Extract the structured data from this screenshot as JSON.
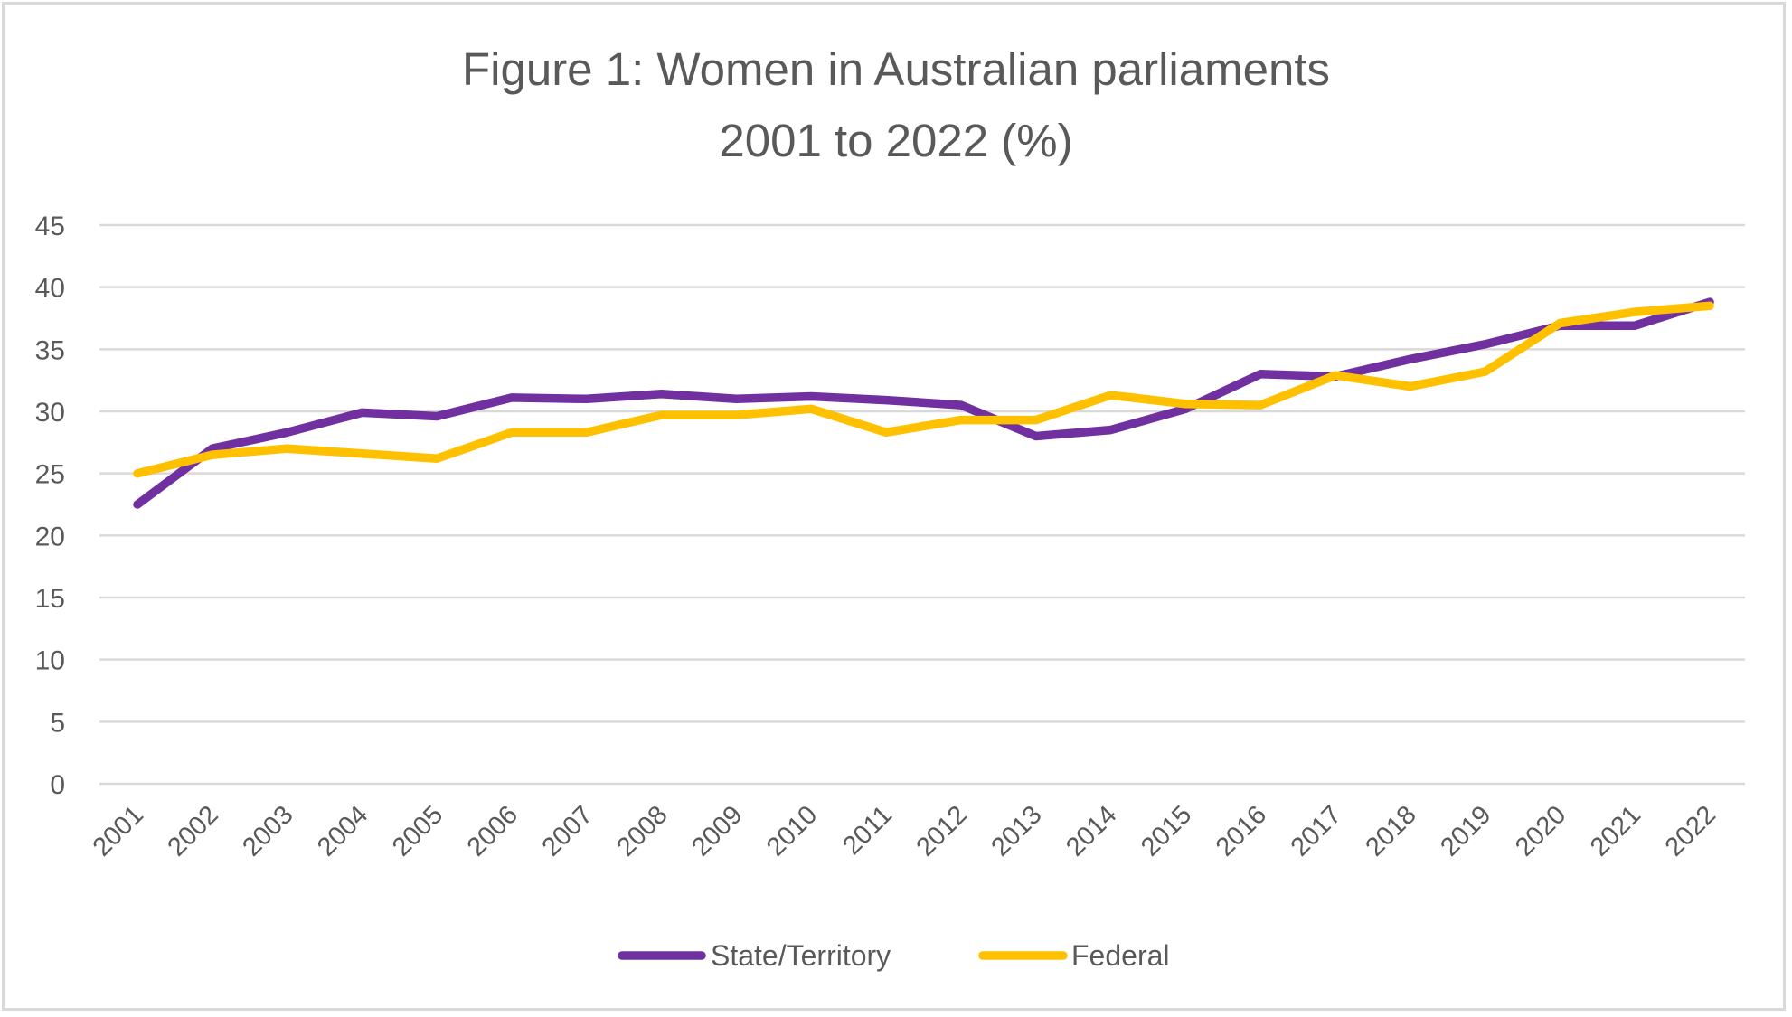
{
  "chart_data": {
    "type": "line",
    "title": "Figure 1: Women in Australian parliaments",
    "subtitle": "2001 to 2022 (%)",
    "title_lines": [
      "Figure 1: Women in Australian parliaments",
      "2001 to 2022 (%)"
    ],
    "xlabel": "",
    "ylabel": "",
    "x": [
      "2001",
      "2002",
      "2003",
      "2004",
      "2005",
      "2006",
      "2007",
      "2008",
      "2009",
      "2010",
      "2011",
      "2012",
      "2013",
      "2014",
      "2015",
      "2016",
      "2017",
      "2018",
      "2019",
      "2020",
      "2021",
      "2022"
    ],
    "ylim": [
      0,
      45
    ],
    "yticks": [
      "0",
      "5",
      "10",
      "15",
      "20",
      "25",
      "30",
      "35",
      "40",
      "45"
    ],
    "ytick_values": [
      0,
      5,
      10,
      15,
      20,
      25,
      30,
      35,
      40,
      45
    ],
    "grid": true,
    "legend_position": "bottom",
    "series": [
      {
        "name": "State/Territory",
        "color": "#7030A0",
        "values": [
          22.5,
          27.0,
          28.3,
          29.9,
          29.6,
          31.1,
          31.0,
          31.4,
          31.0,
          31.2,
          30.9,
          30.5,
          28.0,
          28.5,
          30.2,
          33.0,
          32.8,
          34.2,
          35.4,
          36.9,
          36.9,
          38.8
        ]
      },
      {
        "name": "Federal",
        "color": "#FFC000",
        "values": [
          25.0,
          26.5,
          27.0,
          26.6,
          26.2,
          28.3,
          28.3,
          29.7,
          29.7,
          30.2,
          28.3,
          29.3,
          29.3,
          31.3,
          30.6,
          30.5,
          32.9,
          32.0,
          33.2,
          37.1,
          38.0,
          38.5
        ]
      }
    ]
  }
}
